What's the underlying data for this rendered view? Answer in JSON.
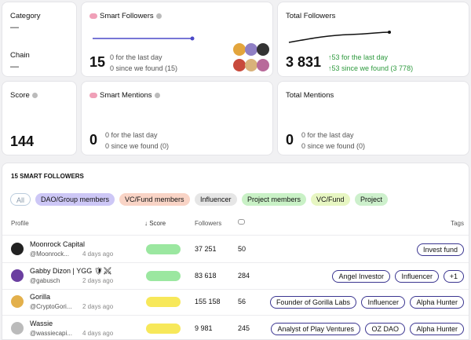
{
  "cards": {
    "category": {
      "label": "Category",
      "value": "—"
    },
    "chain": {
      "label": "Chain",
      "value": "—"
    },
    "smart_followers": {
      "title": "Smart Followers",
      "value": "15",
      "day": "0 for the last day",
      "since": "0 since we found (15)"
    },
    "total_followers": {
      "title": "Total Followers",
      "value": "3 831",
      "day": "↑53 for the last day",
      "since": "↑53 since we found (3 778)"
    },
    "score": {
      "title": "Score",
      "value": "144"
    },
    "smart_mentions": {
      "title": "Smart Mentions",
      "value": "0",
      "day": "0 for the last day",
      "since": "0 since we found (0)"
    },
    "total_mentions": {
      "title": "Total Mentions",
      "value": "0",
      "day": "0 for the last day",
      "since": "0 since we found (0)"
    }
  },
  "table": {
    "title": "15 SMART FOLLOWERS",
    "filters": [
      "All",
      "DAO/Group members",
      "VC/Fund members",
      "Influencer",
      "Project members",
      "VC/Fund",
      "Project"
    ],
    "columns": {
      "profile": "Profile",
      "score": "↓ Score",
      "followers": "Followers",
      "tags": "Tags"
    },
    "rows": [
      {
        "name": "Moonrock Capital",
        "handle": "@Moonrock...",
        "age": "4 days ago",
        "followers": "37 251",
        "mentions": "50",
        "tags": [
          "Invest fund"
        ],
        "score_color": "#9be7a0"
      },
      {
        "name": "Gabby Dizon | YGG 🛡⚔",
        "handle": "@gabusch",
        "age": "2 days ago",
        "followers": "83 618",
        "mentions": "284",
        "tags": [
          "Angel Investor",
          "Influencer",
          "+1"
        ],
        "score_color": "#9be7a0"
      },
      {
        "name": "Gorilla",
        "handle": "@CryptoGori...",
        "age": "2 days ago",
        "followers": "155 158",
        "mentions": "56",
        "tags": [
          "Founder of Gorilla Labs",
          "Influencer",
          "Alpha Hunter"
        ],
        "score_color": "#f7e85a"
      },
      {
        "name": "Wassie",
        "handle": "@wassiecapi...",
        "age": "4 days ago",
        "followers": "9 981",
        "mentions": "245",
        "tags": [
          "Analyst of Play Ventures",
          "OZ DAO",
          "Alpha Hunter"
        ],
        "score_color": "#f7e85a"
      }
    ]
  }
}
